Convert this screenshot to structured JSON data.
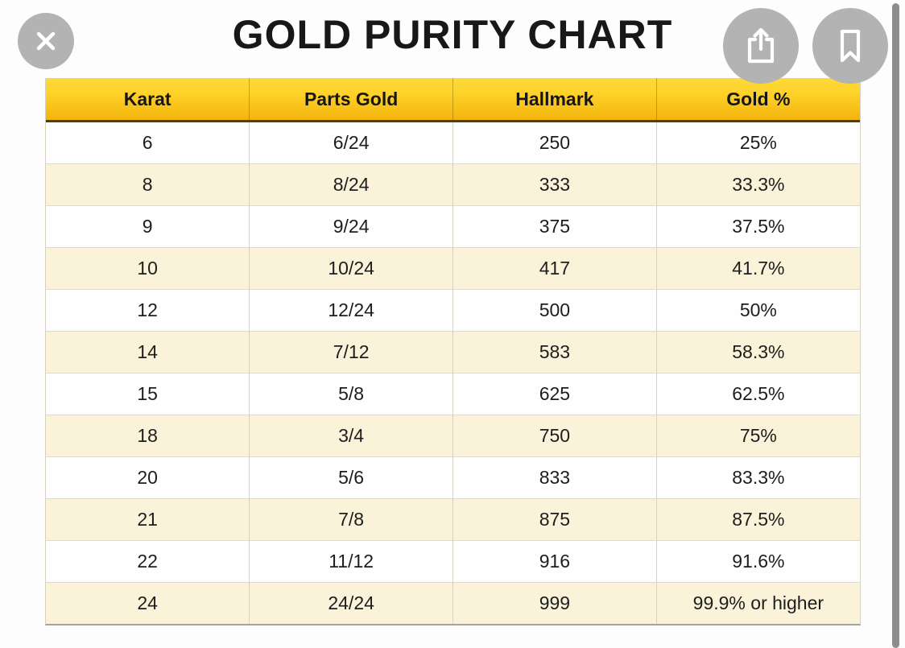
{
  "title": "GOLD PURITY CHART",
  "viewer": {
    "close_icon": "close-x",
    "share_icon": "share-up-arrow",
    "bookmark_icon": "bookmark-ribbon",
    "scrollbar": "vertical-scrollbar"
  },
  "colors": {
    "header_gold_top": "#ffd93c",
    "header_gold_bottom": "#f3b40c",
    "header_border": "#4e3e03",
    "row_white": "#fefefe",
    "row_cream": "#faf3d9",
    "circle_gray": "#b3b3b3",
    "scrollbar_gray": "#8d8d8d",
    "text_dark": "#1d1d1d"
  },
  "chart_data": {
    "type": "table",
    "title": "GOLD PURITY CHART",
    "columns": [
      "Karat",
      "Parts Gold",
      "Hallmark",
      "Gold %"
    ],
    "rows": [
      [
        "6",
        "6/24",
        "250",
        "25%"
      ],
      [
        "8",
        "8/24",
        "333",
        "33.3%"
      ],
      [
        "9",
        "9/24",
        "375",
        "37.5%"
      ],
      [
        "10",
        "10/24",
        "417",
        "41.7%"
      ],
      [
        "12",
        "12/24",
        "500",
        "50%"
      ],
      [
        "14",
        "7/12",
        "583",
        "58.3%"
      ],
      [
        "15",
        "5/8",
        "625",
        "62.5%"
      ],
      [
        "18",
        "3/4",
        "750",
        "75%"
      ],
      [
        "20",
        "5/6",
        "833",
        "83.3%"
      ],
      [
        "21",
        "7/8",
        "875",
        "87.5%"
      ],
      [
        "22",
        "11/12",
        "916",
        "91.6%"
      ],
      [
        "24",
        "24/24",
        "999",
        "99.9% or higher"
      ]
    ],
    "layout": {
      "striping": [
        "white",
        "cream"
      ],
      "header_style": "gold-gradient",
      "column_alignment": "center"
    }
  }
}
